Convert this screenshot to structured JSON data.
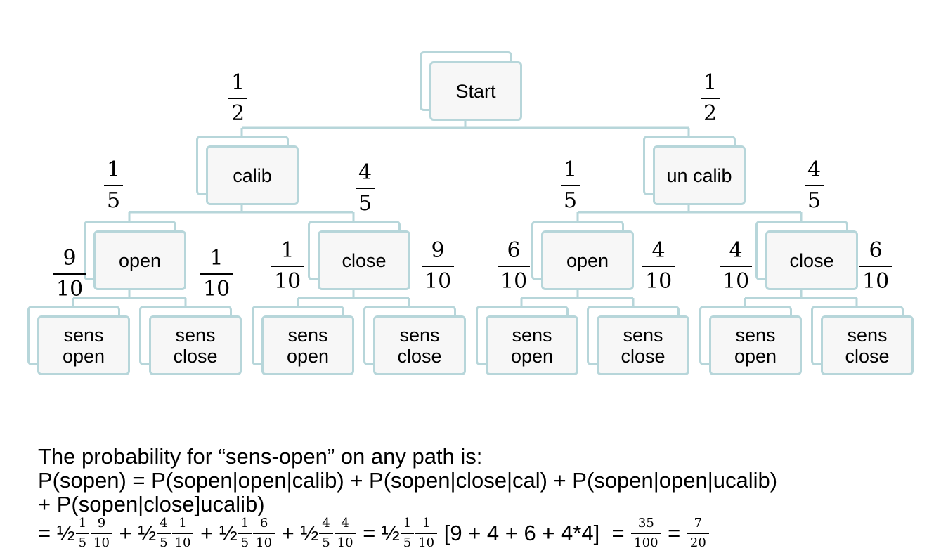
{
  "tree": {
    "nodes": {
      "start": "Start",
      "calib": "calib",
      "uncalib": "un calib",
      "open_left": "open",
      "close_left": "close",
      "open_right": "open",
      "close_right": "close",
      "leaves": [
        [
          "sens",
          "open"
        ],
        [
          "sens",
          "close"
        ],
        [
          "sens",
          "open"
        ],
        [
          "sens",
          "close"
        ],
        [
          "sens",
          "open"
        ],
        [
          "sens",
          "close"
        ],
        [
          "sens",
          "open"
        ],
        [
          "sens",
          "close"
        ]
      ]
    },
    "edge_probabilities": {
      "start_calib": [
        "1",
        "2"
      ],
      "start_uncalib": [
        "1",
        "2"
      ],
      "calib_open": [
        "1",
        "5"
      ],
      "calib_close": [
        "4",
        "5"
      ],
      "uncalib_open": [
        "1",
        "5"
      ],
      "uncalib_close": [
        "4",
        "5"
      ],
      "calib_open_sopen": [
        "9",
        "10"
      ],
      "calib_open_sclose": [
        "1",
        "10"
      ],
      "calib_close_sopen": [
        "1",
        "10"
      ],
      "calib_close_sclose": [
        "9",
        "10"
      ],
      "uncalib_open_sopen": [
        "6",
        "10"
      ],
      "uncalib_open_sclose": [
        "4",
        "10"
      ],
      "uncalib_close_sopen": [
        "4",
        "10"
      ],
      "uncalib_close_sclose": [
        "6",
        "10"
      ]
    }
  },
  "explanation": {
    "line1": "The probability for “sens-open” on any path is:",
    "line2": "P(sopen) = P(sopen|open|calib) + P(sopen|close|cal) + P(sopen|open|ucalib)",
    "line3": "+ P(sopen|close]ucalib)",
    "eq": {
      "p0": "= ½",
      "f1": [
        "1",
        "5"
      ],
      "f2": [
        "9",
        "10"
      ],
      "p1": " + ½",
      "f3": [
        "4",
        "5"
      ],
      "f4": [
        "1",
        "10"
      ],
      "p2": " + ½",
      "f5": [
        "1",
        "5"
      ],
      "f6": [
        "6",
        "10"
      ],
      "p3": " + ½",
      "f7": [
        "4",
        "5"
      ],
      "f8": [
        "4",
        "10"
      ],
      "p4": " = ½",
      "f9": [
        "1",
        "5"
      ],
      "f10": [
        "1",
        "10"
      ],
      "p5": " [9 + 4 + 6 + 4*4]  = ",
      "f11": [
        "35",
        "100"
      ],
      "p6": " = ",
      "f12": [
        "7",
        "20"
      ]
    }
  }
}
